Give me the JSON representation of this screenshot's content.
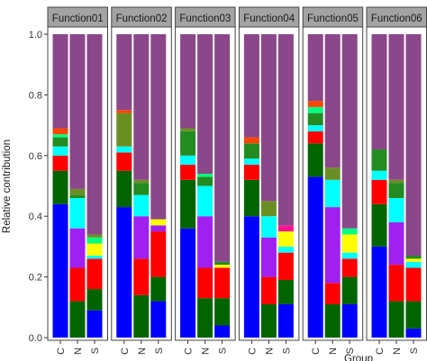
{
  "chart_data": {
    "type": "bar",
    "stacked": true,
    "facet_strips": true,
    "grid": false,
    "legend": "none",
    "ylabel": "Relative contribution",
    "xlabel": "Group",
    "ylim": [
      0,
      1
    ],
    "y_ticks": [
      "0.0",
      "0.2",
      "0.4",
      "0.6",
      "0.8",
      "1.0"
    ],
    "categories": [
      "C",
      "N",
      "S"
    ],
    "layer_colors": [
      "#0000FF",
      "#006400",
      "#FF0000",
      "#A020F0",
      "#00FFFF",
      "#FFFF00",
      "#228B22",
      "#FF1493",
      "#00FF7F",
      "#6B8E23",
      "#FF4500",
      "#8B4789"
    ],
    "facets": [
      {
        "name": "Function01",
        "bars": [
          [
            0.44,
            0.11,
            0.05,
            0.0,
            0.03,
            0.0,
            0.03,
            0.0,
            0.01,
            0.0,
            0.02,
            0.31
          ],
          [
            0.0,
            0.12,
            0.11,
            0.13,
            0.1,
            0.0,
            0.01,
            0.0,
            0.0,
            0.02,
            0.0,
            0.51
          ],
          [
            0.09,
            0.07,
            0.1,
            0.0,
            0.01,
            0.04,
            0.0,
            0.0,
            0.02,
            0.01,
            0.0,
            0.66
          ]
        ]
      },
      {
        "name": "Function02",
        "bars": [
          [
            0.43,
            0.12,
            0.06,
            0.0,
            0.02,
            0.0,
            0.0,
            0.0,
            0.0,
            0.11,
            0.01,
            0.25
          ],
          [
            0.0,
            0.14,
            0.12,
            0.14,
            0.07,
            0.0,
            0.04,
            0.0,
            0.0,
            0.01,
            0.0,
            0.48
          ],
          [
            0.12,
            0.08,
            0.15,
            0.02,
            0.0,
            0.02,
            0.0,
            0.0,
            0.0,
            0.0,
            0.0,
            0.61
          ]
        ]
      },
      {
        "name": "Function03",
        "bars": [
          [
            0.36,
            0.16,
            0.05,
            0.0,
            0.03,
            0.0,
            0.08,
            0.0,
            0.0,
            0.01,
            0.0,
            0.31
          ],
          [
            0.0,
            0.13,
            0.1,
            0.17,
            0.1,
            0.0,
            0.03,
            0.0,
            0.01,
            0.0,
            0.0,
            0.46
          ],
          [
            0.04,
            0.09,
            0.1,
            0.0,
            0.0,
            0.01,
            0.01,
            0.0,
            0.0,
            0.0,
            0.0,
            0.75
          ]
        ]
      },
      {
        "name": "Function04",
        "bars": [
          [
            0.4,
            0.12,
            0.05,
            0.0,
            0.02,
            0.0,
            0.05,
            0.0,
            0.0,
            0.0,
            0.02,
            0.34
          ],
          [
            0.0,
            0.11,
            0.09,
            0.13,
            0.07,
            0.0,
            0.0,
            0.0,
            0.0,
            0.05,
            0.0,
            0.55
          ],
          [
            0.11,
            0.08,
            0.09,
            0.0,
            0.02,
            0.05,
            0.0,
            0.02,
            0.0,
            0.0,
            0.0,
            0.63
          ]
        ]
      },
      {
        "name": "Function05",
        "bars": [
          [
            0.53,
            0.11,
            0.04,
            0.0,
            0.02,
            0.0,
            0.04,
            0.0,
            0.02,
            0.0,
            0.02,
            0.22
          ],
          [
            0.0,
            0.11,
            0.07,
            0.25,
            0.09,
            0.0,
            0.0,
            0.0,
            0.0,
            0.04,
            0.0,
            0.44
          ],
          [
            0.11,
            0.09,
            0.06,
            0.0,
            0.02,
            0.06,
            0.0,
            0.0,
            0.02,
            0.0,
            0.0,
            0.64
          ]
        ]
      },
      {
        "name": "Function06",
        "bars": [
          [
            0.3,
            0.14,
            0.08,
            0.0,
            0.03,
            0.0,
            0.07,
            0.0,
            0.0,
            0.0,
            0.0,
            0.38
          ],
          [
            0.0,
            0.12,
            0.12,
            0.14,
            0.08,
            0.0,
            0.05,
            0.0,
            0.0,
            0.01,
            0.0,
            0.48
          ],
          [
            0.03,
            0.09,
            0.11,
            0.0,
            0.02,
            0.01,
            0.01,
            0.0,
            0.0,
            0.0,
            0.0,
            0.73
          ]
        ]
      }
    ]
  }
}
